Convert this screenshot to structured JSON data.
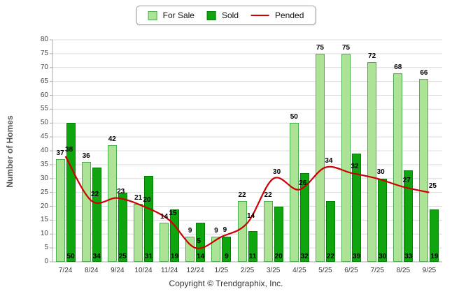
{
  "legend": {
    "for_sale": "For Sale",
    "sold": "Sold",
    "pended": "Pended"
  },
  "ylabel": "Number of Homes",
  "footer": "Copyright © Trendgraphix, Inc.",
  "colors": {
    "for_sale": "#ACE396",
    "for_sale_border": "#4DAE4D",
    "sold": "#0FA50F",
    "sold_border": "#067D06",
    "pended": "#CC0000",
    "grid": "#DCDCDC",
    "axis": "#AAAAAA",
    "label": "#000000"
  },
  "chart_data": {
    "type": "bar",
    "title": "",
    "xlabel": "",
    "ylabel": "Number of Homes",
    "ylim": [
      0,
      80
    ],
    "ytick_step": 5,
    "grid": true,
    "legend_position": "top",
    "categories": [
      "7/24",
      "8/24",
      "9/24",
      "10/24",
      "11/24",
      "12/24",
      "1/25",
      "2/25",
      "3/25",
      "4/25",
      "5/25",
      "6/25",
      "7/25",
      "8/25",
      "9/25"
    ],
    "series": [
      {
        "name": "For Sale",
        "type": "bar",
        "values": [
          37,
          36,
          42,
          21,
          14,
          9,
          9,
          22,
          22,
          50,
          75,
          75,
          72,
          68,
          66
        ]
      },
      {
        "name": "Sold",
        "type": "bar",
        "values": [
          50,
          34,
          25,
          31,
          19,
          14,
          9,
          11,
          20,
          32,
          22,
          39,
          30,
          33,
          19
        ]
      },
      {
        "name": "Pended",
        "type": "line",
        "values": [
          38,
          22,
          23,
          20,
          15,
          5,
          9,
          14,
          30,
          26,
          34,
          32,
          30,
          27,
          25
        ]
      }
    ]
  }
}
